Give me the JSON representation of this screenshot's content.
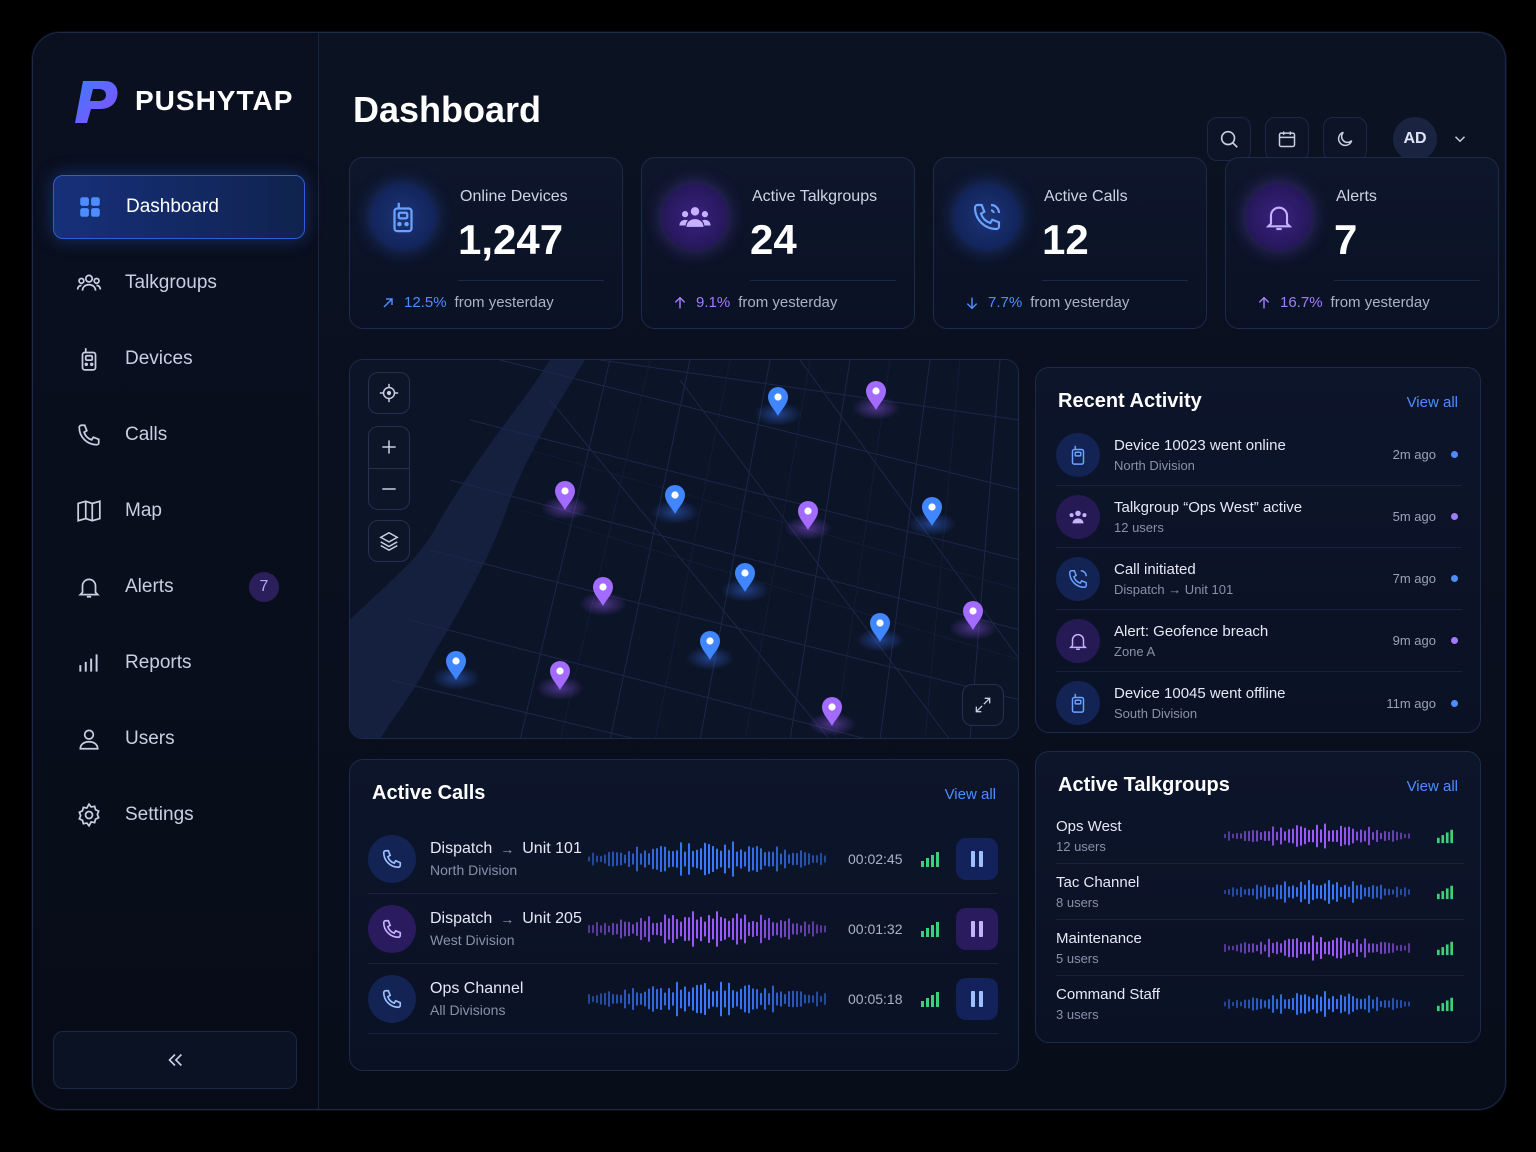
{
  "brand": {
    "name": "PUSHYTAP"
  },
  "page": {
    "title": "Dashboard"
  },
  "header": {
    "avatar_initials": "AD",
    "icons": [
      "search-icon",
      "calendar-icon",
      "moon-icon",
      "chevron-down-icon"
    ]
  },
  "sidebar": {
    "items": [
      {
        "label": "Dashboard",
        "icon": "grid-icon",
        "active": true
      },
      {
        "label": "Talkgroups",
        "icon": "users-icon"
      },
      {
        "label": "Devices",
        "icon": "radio-icon"
      },
      {
        "label": "Calls",
        "icon": "phone-icon"
      },
      {
        "label": "Map",
        "icon": "map-icon"
      },
      {
        "label": "Alerts",
        "icon": "bell-icon",
        "badge": "7"
      },
      {
        "label": "Reports",
        "icon": "bar-chart-icon"
      },
      {
        "label": "Users",
        "icon": "user-icon"
      },
      {
        "label": "Settings",
        "icon": "gear-icon"
      }
    ]
  },
  "kpis": [
    {
      "label": "Online Devices",
      "value": "1,247",
      "pct": "12.5%",
      "trend": "up",
      "foot": "from yesterday",
      "color": "#4e8dff"
    },
    {
      "label": "Active Talkgroups",
      "value": "24",
      "pct": "9.1%",
      "trend": "up",
      "foot": "from yesterday",
      "color": "#a07bff"
    },
    {
      "label": "Active Calls",
      "value": "12",
      "pct": "7.7%",
      "trend": "down",
      "foot": "from yesterday",
      "color": "#4e8dff"
    },
    {
      "label": "Alerts",
      "value": "7",
      "pct": "16.7%",
      "trend": "up",
      "foot": "from yesterday",
      "color": "#a07bff"
    }
  ],
  "recent_activity": {
    "title": "Recent Activity",
    "link": "View all",
    "items": [
      {
        "title": "Device 10023 went online",
        "sub": "North Division",
        "time": "2m ago",
        "color": "blue"
      },
      {
        "title": "Talkgroup “Ops West” active",
        "sub": "12 users",
        "time": "5m ago",
        "color": "purple"
      },
      {
        "title": "Call initiated",
        "sub": "Dispatch → Unit 101",
        "time": "7m ago",
        "color": "blue"
      },
      {
        "title": "Alert: Geofence breach",
        "sub": "Zone A",
        "time": "9m ago",
        "color": "purple"
      },
      {
        "title": "Device 10045 went offline",
        "sub": "South Division",
        "time": "11m ago",
        "color": "blue"
      }
    ]
  },
  "active_calls": {
    "title": "Active Calls",
    "link": "View all",
    "items": [
      {
        "from": "Dispatch",
        "to": "Unit 101",
        "sub": "North Division",
        "time": "00:02:45",
        "color": "blue"
      },
      {
        "from": "Dispatch",
        "to": "Unit 205",
        "sub": "West Division",
        "time": "00:01:32",
        "color": "purple"
      },
      {
        "from": "Ops Channel",
        "to": "",
        "sub": "All Divisions",
        "time": "00:05:18",
        "color": "blue"
      }
    ]
  },
  "active_talkgroups": {
    "title": "Active Talkgroups",
    "link": "View all",
    "items": [
      {
        "name": "Ops West",
        "sub": "12 users",
        "color": "purple"
      },
      {
        "name": "Tac Channel",
        "sub": "8 users",
        "color": "blue"
      },
      {
        "name": "Maintenance",
        "sub": "5 users",
        "color": "purple"
      },
      {
        "name": "Command Staff",
        "sub": "3 users",
        "color": "blue"
      }
    ]
  },
  "colors": {
    "accent_blue": "#4e8dff",
    "accent_purple": "#a07bff",
    "signal_green": "#3ecf7a"
  }
}
